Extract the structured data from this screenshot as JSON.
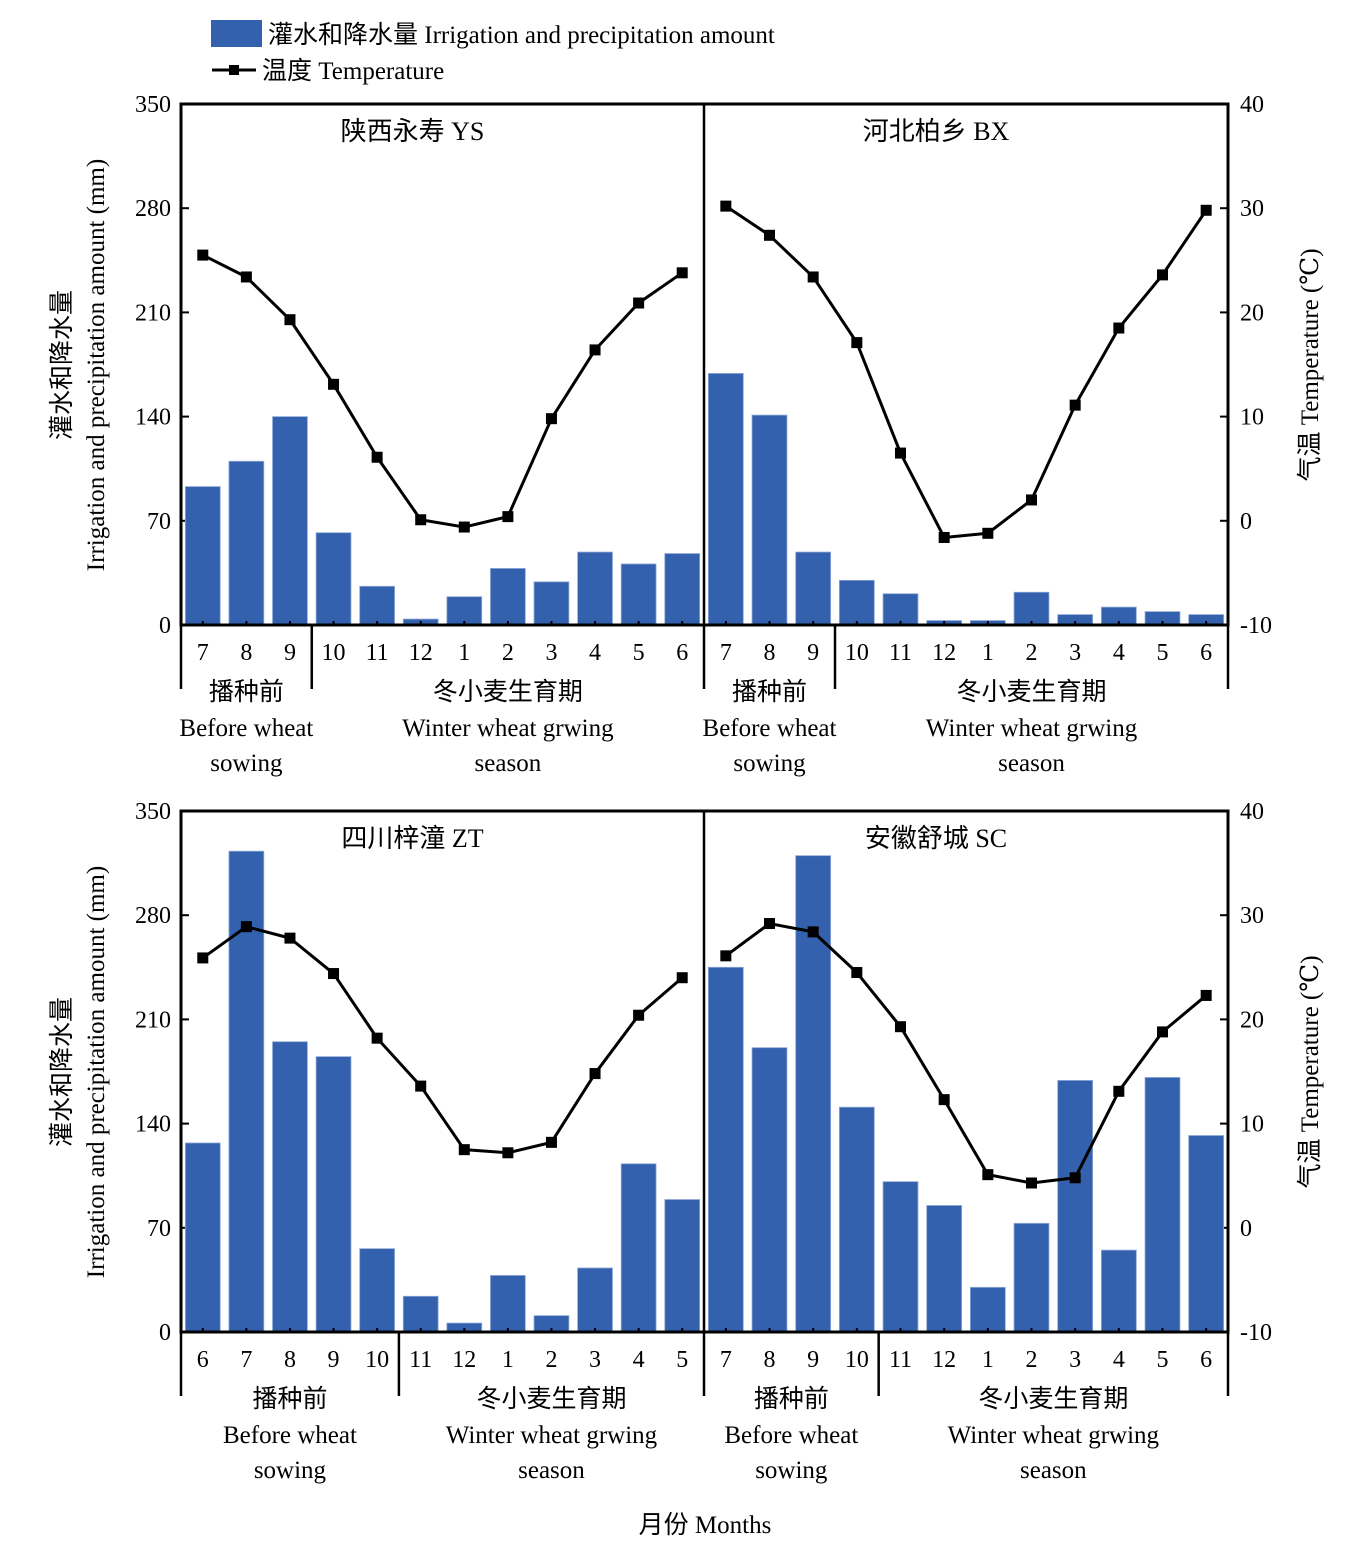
{
  "legend": {
    "bar_label": "灌水和降水量 Irrigation and precipitation amount",
    "line_label": "温度 Temperature",
    "bar_color": "#3361AE",
    "line_color": "#000000"
  },
  "axes": {
    "left_label_cn": "灌水和降水量",
    "left_label_en": "Irrigation and precipitation amount (mm)",
    "right_label": "气温 Temperature (℃)",
    "x_label": "月份 Months",
    "left_ticks": [
      "0",
      "70",
      "140",
      "210",
      "280",
      "350"
    ],
    "right_ticks": [
      "-10",
      "0",
      "10",
      "20",
      "30",
      "40"
    ]
  },
  "period_labels": {
    "before_cn": "播种前",
    "before_en_1": "Before wheat",
    "before_en_2": "sowing",
    "season_cn": "冬小麦生育期",
    "season_en_1": "Winter wheat grwing",
    "season_en_2": "season"
  },
  "chart_data": [
    {
      "type": "bar+line",
      "title": "陕西永寿 YS",
      "categories": [
        "7",
        "8",
        "9",
        "10",
        "11",
        "12",
        "1",
        "2",
        "3",
        "4",
        "5",
        "6"
      ],
      "before_sowing_count": 3,
      "series": [
        {
          "name": "灌水和降水量 Irrigation and precipitation amount",
          "axis": "left",
          "type": "bar",
          "values": [
            93,
            110,
            140,
            62,
            26,
            4,
            19,
            38,
            29,
            49,
            41,
            48
          ]
        },
        {
          "name": "温度 Temperature",
          "axis": "right",
          "type": "line",
          "values": [
            25.5,
            23.4,
            19.3,
            13.1,
            6.1,
            0.1,
            -0.6,
            0.4,
            9.8,
            16.4,
            20.9,
            23.8
          ]
        }
      ],
      "xlabel": "月份 Months",
      "ylabel": "Irrigation and precipitation amount (mm)",
      "y2label": "气温 Temperature (℃)",
      "ylim": [
        0,
        350
      ],
      "y2lim": [
        -10,
        40
      ]
    },
    {
      "type": "bar+line",
      "title": "河北柏乡 BX",
      "categories": [
        "7",
        "8",
        "9",
        "10",
        "11",
        "12",
        "1",
        "2",
        "3",
        "4",
        "5",
        "6"
      ],
      "before_sowing_count": 3,
      "series": [
        {
          "name": "灌水和降水量 Irrigation and precipitation amount",
          "axis": "left",
          "type": "bar",
          "values": [
            169,
            141,
            49,
            30,
            21,
            3,
            3,
            22,
            7,
            12,
            9,
            7
          ]
        },
        {
          "name": "温度 Temperature",
          "axis": "right",
          "type": "line",
          "values": [
            30.2,
            27.4,
            23.4,
            17.1,
            6.5,
            -1.6,
            -1.2,
            2.0,
            11.1,
            18.5,
            23.6,
            29.8
          ]
        }
      ],
      "xlabel": "月份 Months",
      "ylabel": "Irrigation and precipitation amount (mm)",
      "y2label": "气温 Temperature (℃)",
      "ylim": [
        0,
        350
      ],
      "y2lim": [
        -10,
        40
      ]
    },
    {
      "type": "bar+line",
      "title": "四川梓潼 ZT",
      "categories": [
        "6",
        "7",
        "8",
        "9",
        "10",
        "11",
        "12",
        "1",
        "2",
        "3",
        "4",
        "5"
      ],
      "before_sowing_count": 5,
      "series": [
        {
          "name": "灌水和降水量 Irrigation and precipitation amount",
          "axis": "left",
          "type": "bar",
          "values": [
            127,
            323,
            195,
            185,
            56,
            24,
            6,
            38,
            11,
            43,
            113,
            89
          ]
        },
        {
          "name": "温度 Temperature",
          "axis": "right",
          "type": "line",
          "values": [
            25.9,
            28.9,
            27.8,
            24.4,
            18.2,
            13.6,
            7.5,
            7.2,
            8.2,
            14.8,
            20.4,
            24.0
          ]
        }
      ],
      "xlabel": "月份 Months",
      "ylabel": "Irrigation and precipitation amount (mm)",
      "y2label": "气温 Temperature (℃)",
      "ylim": [
        0,
        350
      ],
      "y2lim": [
        -10,
        40
      ]
    },
    {
      "type": "bar+line",
      "title": "安徽舒城 SC",
      "categories": [
        "7",
        "8",
        "9",
        "10",
        "11",
        "12",
        "1",
        "2",
        "3",
        "4",
        "5",
        "6"
      ],
      "before_sowing_count": 4,
      "series": [
        {
          "name": "灌水和降水量 Irrigation and precipitation amount",
          "axis": "left",
          "type": "bar",
          "values": [
            245,
            191,
            320,
            151,
            101,
            85,
            30,
            73,
            169,
            55,
            171,
            132
          ]
        },
        {
          "name": "温度 Temperature",
          "axis": "right",
          "type": "line",
          "values": [
            26.1,
            29.2,
            28.4,
            24.5,
            19.3,
            12.3,
            5.1,
            4.3,
            4.8,
            13.1,
            18.8,
            22.3
          ]
        }
      ],
      "xlabel": "月份 Months",
      "ylabel": "Irrigation and precipitation amount (mm)",
      "y2label": "气温 Temperature (℃)",
      "ylim": [
        0,
        350
      ],
      "y2lim": [
        -10,
        40
      ]
    }
  ]
}
